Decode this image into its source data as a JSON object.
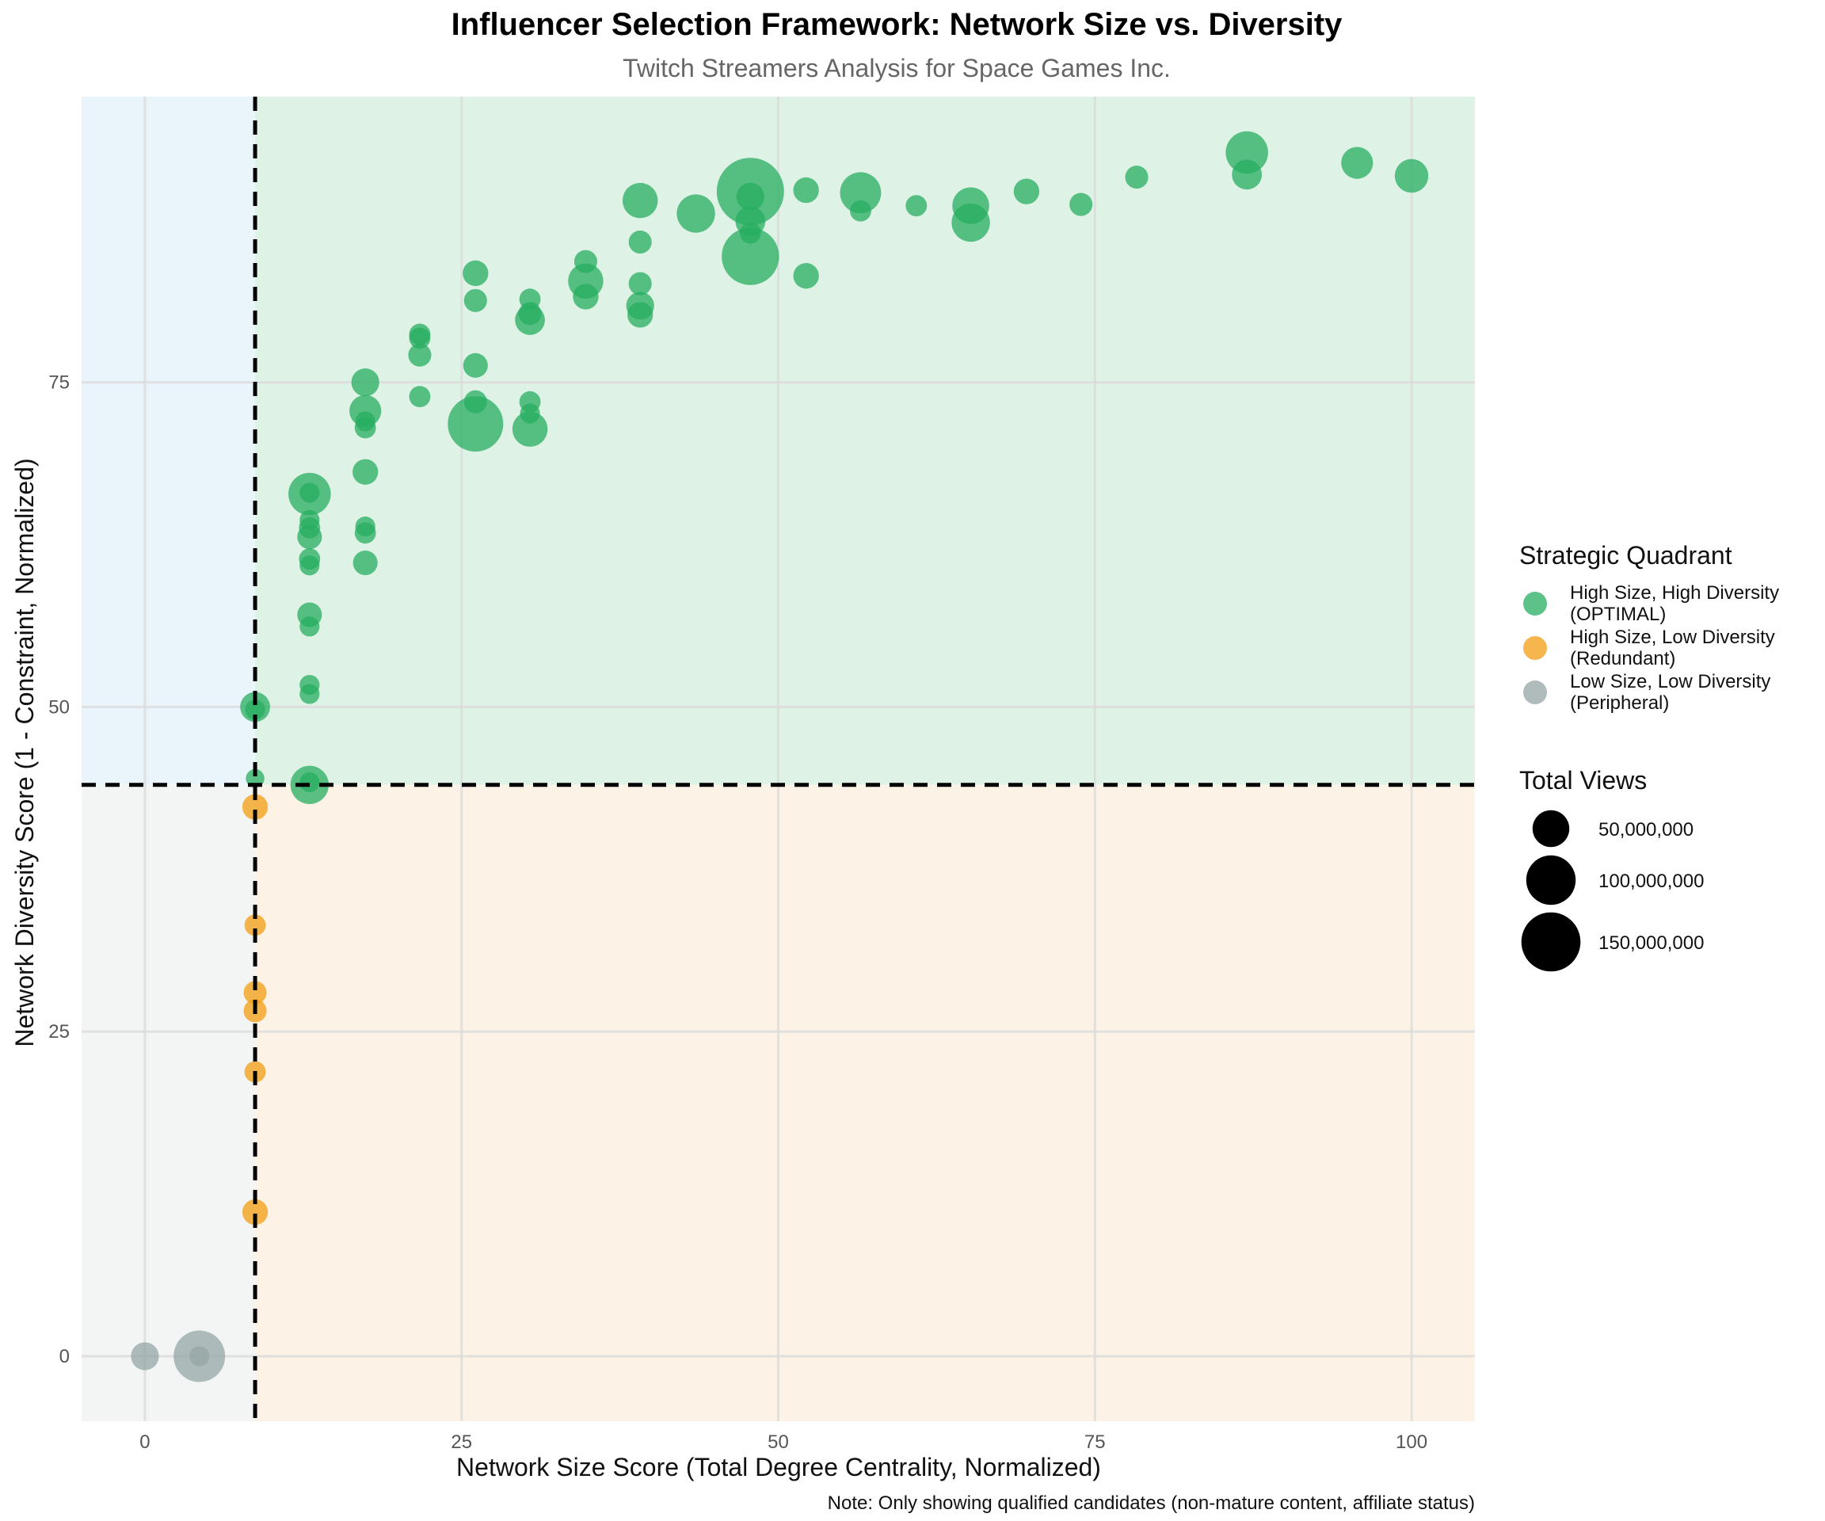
{
  "chart_data": {
    "type": "scatter",
    "title": "Influencer Selection Framework: Network Size vs. Diversity",
    "subtitle": "Twitch Streamers Analysis for Space Games Inc.",
    "xlabel": "Network Size Score (Total Degree Centrality, Normalized)",
    "ylabel": "Network Diversity Score (1 - Constraint, Normalized)",
    "note": "Note: Only showing qualified candidates (non-mature content, affiliate status)",
    "xlim": [
      -5,
      105
    ],
    "ylim": [
      -5,
      97
    ],
    "xticks": [
      0,
      25,
      50,
      75,
      100
    ],
    "yticks": [
      0,
      25,
      50,
      75
    ],
    "x_threshold": 8.7,
    "y_threshold": 44,
    "grid": true,
    "legend_position": "right",
    "quadrant_legend": {
      "title": "Strategic Quadrant",
      "items": [
        {
          "key": "optimal",
          "line1": "High Size, High Diversity",
          "line2": "(OPTIMAL)",
          "color": "#27ae60"
        },
        {
          "key": "redundant",
          "line1": "High Size, Low Diversity",
          "line2": "(Redundant)",
          "color": "#f39c12"
        },
        {
          "key": "peripheral",
          "line1": "Low Size, Low Diversity",
          "line2": "(Peripheral)",
          "color": "#95a5a6"
        }
      ]
    },
    "size_legend": {
      "title": "Total Views",
      "items": [
        {
          "label": "50,000,000",
          "views": 50000000
        },
        {
          "label": "100,000,000",
          "views": 100000000
        },
        {
          "label": "150,000,000",
          "views": 150000000
        }
      ]
    },
    "region_colors": {
      "top_left": "#eaf4fb",
      "top_right": "#def2e6",
      "bottom_left": "#f3f5f5",
      "bottom_right": "#fcf3e6"
    },
    "series": [
      {
        "name": "High Size, High Diversity (OPTIMAL)",
        "color": "#27ae60",
        "points": [
          [
            8.7,
            50,
            30000000
          ],
          [
            8.7,
            49.8,
            10000000
          ],
          [
            8.7,
            44.5,
            8000000
          ],
          [
            13,
            44,
            55000000
          ],
          [
            13,
            44.2,
            10000000
          ],
          [
            13,
            51,
            10000000
          ],
          [
            13,
            51.7,
            10000000
          ],
          [
            13,
            56.2,
            10000000
          ],
          [
            13,
            57.1,
            18000000
          ],
          [
            13,
            60.9,
            10000000
          ],
          [
            13,
            61.4,
            12000000
          ],
          [
            13,
            63.1,
            18000000
          ],
          [
            13,
            63.8,
            12000000
          ],
          [
            13,
            64.4,
            10000000
          ],
          [
            13,
            66.4,
            70000000
          ],
          [
            13,
            66.5,
            10000000
          ],
          [
            17.4,
            61.1,
            18000000
          ],
          [
            17.4,
            63.4,
            12000000
          ],
          [
            17.4,
            63.9,
            10000000
          ],
          [
            17.4,
            68.1,
            20000000
          ],
          [
            17.4,
            71.5,
            12000000
          ],
          [
            17.4,
            72.0,
            10000000
          ],
          [
            17.4,
            72.8,
            35000000
          ],
          [
            17.4,
            75,
            25000000
          ],
          [
            21.7,
            73.9,
            12000000
          ],
          [
            21.7,
            77.1,
            15000000
          ],
          [
            21.7,
            78.4,
            12000000
          ],
          [
            21.7,
            78.7,
            12000000
          ],
          [
            26.1,
            71.8,
            130000000
          ],
          [
            26.1,
            73.5,
            15000000
          ],
          [
            26.1,
            76.3,
            18000000
          ],
          [
            26.1,
            81.3,
            15000000
          ],
          [
            26.1,
            83.4,
            20000000
          ],
          [
            30.4,
            71.4,
            45000000
          ],
          [
            30.4,
            72.6,
            10000000
          ],
          [
            30.4,
            73.5,
            12000000
          ],
          [
            30.4,
            79.8,
            30000000
          ],
          [
            30.4,
            80.3,
            15000000
          ],
          [
            30.4,
            81.4,
            12000000
          ],
          [
            34.8,
            81.6,
            20000000
          ],
          [
            34.8,
            82.8,
            45000000
          ],
          [
            34.8,
            84.3,
            15000000
          ],
          [
            39.1,
            80.2,
            20000000
          ],
          [
            39.1,
            80.9,
            25000000
          ],
          [
            39.1,
            82.6,
            15000000
          ],
          [
            39.1,
            85.8,
            15000000
          ],
          [
            39.1,
            89,
            45000000
          ],
          [
            43.5,
            88,
            55000000
          ],
          [
            47.8,
            84.7,
            140000000
          ],
          [
            47.8,
            86.5,
            12000000
          ],
          [
            47.8,
            87.4,
            30000000
          ],
          [
            47.8,
            89.7,
            200000000
          ],
          [
            47.8,
            89.3,
            25000000
          ],
          [
            52.2,
            83.2,
            20000000
          ],
          [
            52.2,
            89.8,
            20000000
          ],
          [
            56.5,
            88.2,
            12000000
          ],
          [
            56.5,
            89.6,
            65000000
          ],
          [
            60.9,
            88.6,
            12000000
          ],
          [
            65.2,
            87.3,
            55000000
          ],
          [
            65.2,
            88.6,
            50000000
          ],
          [
            69.6,
            89.7,
            20000000
          ],
          [
            73.9,
            88.7,
            15000000
          ],
          [
            78.3,
            90.8,
            15000000
          ],
          [
            87,
            91,
            30000000
          ],
          [
            87,
            92.7,
            70000000
          ],
          [
            95.7,
            91.9,
            35000000
          ],
          [
            100,
            90.9,
            40000000
          ]
        ]
      },
      {
        "name": "High Size, Low Diversity (Redundant)",
        "color": "#f39c12",
        "points": [
          [
            8.7,
            42.3,
            20000000
          ],
          [
            8.7,
            33.2,
            12000000
          ],
          [
            8.7,
            28.0,
            15000000
          ],
          [
            8.7,
            26.6,
            15000000
          ],
          [
            8.7,
            21.9,
            12000000
          ],
          [
            8.7,
            11.1,
            20000000
          ]
        ]
      },
      {
        "name": "Low Size, Low Diversity (Peripheral)",
        "color": "#95a5a6",
        "points": [
          [
            0,
            0,
            25000000
          ],
          [
            4.3,
            0,
            110000000
          ],
          [
            4.3,
            0,
            10000000
          ]
        ]
      }
    ]
  }
}
